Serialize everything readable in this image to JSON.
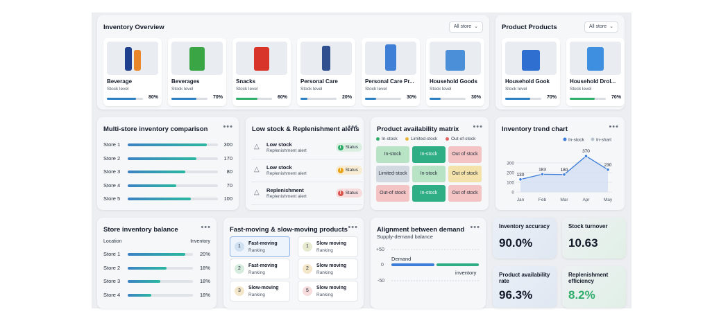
{
  "overview": {
    "title": "Inventory Overview",
    "filter": "All store",
    "items": [
      {
        "name": "Beverage",
        "sub": "Stock level",
        "pct": "80%",
        "level": 80,
        "bar_color": "#2b7fc0"
      },
      {
        "name": "Beverages",
        "sub": "Stock level",
        "pct": "70%",
        "level": 70,
        "bar_color": "#2b7fc0"
      },
      {
        "name": "Snacks",
        "sub": "Stock level",
        "pct": "60%",
        "level": 60,
        "bar_color": "#2fae6b"
      },
      {
        "name": "Personal Care",
        "sub": "Stock level",
        "pct": "20%",
        "level": 20,
        "bar_color": "#2b7fc0"
      },
      {
        "name": "Personal Care Pr...",
        "sub": "Stock level",
        "pct": "30%",
        "level": 30,
        "bar_color": "#2b7fc0"
      },
      {
        "name": "Household Goods",
        "sub": "Stock level",
        "pct": "30%",
        "level": 30,
        "bar_color": "#2b7fc0"
      }
    ]
  },
  "products": {
    "title": "Product Products",
    "filter": "All store",
    "items": [
      {
        "name": "Household Gook",
        "sub": "Stock level",
        "pct": "70%",
        "level": 70,
        "bar_color": "#2b7fc0"
      },
      {
        "name": "Household Drol...",
        "sub": "Stock level",
        "pct": "70%",
        "level": 70,
        "bar_color": "#2fae6b"
      }
    ]
  },
  "multistore": {
    "title": "Multi-store inventory comparison",
    "rows": [
      {
        "label": "Store 1",
        "value": "300",
        "level": 88
      },
      {
        "label": "Store 2",
        "value": "170",
        "level": 76
      },
      {
        "label": "Store 3",
        "value": "80",
        "level": 64
      },
      {
        "label": "Store 4",
        "value": "70",
        "level": 54
      },
      {
        "label": "Store 5",
        "value": "100",
        "level": 70
      }
    ]
  },
  "alerts": {
    "title": "Low stock & Replenishment alerts",
    "items": [
      {
        "title": "Low stock",
        "sub": "Replenishment alert",
        "badge": "Status",
        "color": "#2fae6b",
        "bg": "#dcefe3",
        "glyph": "i"
      },
      {
        "title": "Low stock",
        "sub": "Replenishment alert",
        "badge": "Status",
        "color": "#e8a317",
        "bg": "#f8ecd2",
        "glyph": "!"
      },
      {
        "title": "Replenishment",
        "sub": "Replenishment alert",
        "badge": "Status",
        "color": "#d9534f",
        "bg": "#f6dcdc",
        "glyph": "!"
      }
    ]
  },
  "matrix": {
    "title": "Product availability matrix",
    "legend": [
      {
        "label": "In-stock",
        "color": "#2fae6b"
      },
      {
        "label": "Limited-stock",
        "color": "#e8b53a"
      },
      {
        "label": "Out-of-stock",
        "color": "#e06464"
      }
    ],
    "rows": [
      [
        {
          "t": "In-stock",
          "bg": "#b9e3c5"
        },
        {
          "t": "In-stock",
          "bg": "#2fae86"
        },
        {
          "t": "Out of stock",
          "bg": "#f4c4c4"
        }
      ],
      [
        {
          "t": "Limited-stock",
          "bg": "#d3d9e0"
        },
        {
          "t": "In-stock",
          "bg": "#b9e3c5"
        },
        {
          "t": "Out of stock",
          "bg": "#f3e2a9"
        }
      ],
      [
        {
          "t": "Out-of stock",
          "bg": "#f4c4c4"
        },
        {
          "t": "In-stock",
          "bg": "#2fae86"
        },
        {
          "t": "Out of stock",
          "bg": "#f4c4c4"
        }
      ]
    ]
  },
  "trend": {
    "title": "Inventory trend chart",
    "legend": [
      "In-stock",
      "In-shart"
    ],
    "legend_colors": [
      "#3b7dd8",
      "#b9c3d0"
    ]
  },
  "chart_data": {
    "type": "area",
    "title": "Inventory trend chart",
    "categories": [
      "Jan",
      "Feb",
      "Mar",
      "Apr",
      "May"
    ],
    "series": [
      {
        "name": "In-stock",
        "values": [
          130,
          183,
          180,
          370,
          230
        ]
      }
    ],
    "data_labels": [
      "130",
      "183",
      "180",
      "370",
      "230"
    ],
    "yticks": [
      "300",
      "200",
      "100",
      "0"
    ],
    "ylim": [
      0,
      400
    ],
    "grid": true,
    "legend": "top-right"
  },
  "balance": {
    "title": "Store inventory balance",
    "col1": "Location",
    "col2": "Inventory",
    "rows": [
      {
        "label": "Store 1",
        "value": "20%",
        "level": 88
      },
      {
        "label": "Store 2",
        "value": "18%",
        "level": 60
      },
      {
        "label": "Store 3",
        "value": "18%",
        "level": 50
      },
      {
        "label": "Store 4",
        "value": "18%",
        "level": 36
      }
    ]
  },
  "moving": {
    "title": "Fast-moving & slow-moving products",
    "left": [
      {
        "num": "1",
        "title": "Fast-moving",
        "sub": "Ranking",
        "color": "#cfe0f3",
        "active": true
      },
      {
        "num": "2",
        "title": "Fast-moving",
        "sub": "Ranking",
        "color": "#d6ecdf",
        "active": false
      },
      {
        "num": "3",
        "title": "Slow-moving",
        "sub": "Ranking",
        "color": "#f4e6c9",
        "active": false
      }
    ],
    "right": [
      {
        "num": "1",
        "title": "Slow moving",
        "sub": "Ranking",
        "color": "#e8ead0"
      },
      {
        "num": "2",
        "title": "Slow moving",
        "sub": "Ranking",
        "color": "#f4e6c9"
      },
      {
        "num": "5",
        "title": "Slow moving",
        "sub": "Ranking",
        "color": "#f6dcdc"
      }
    ]
  },
  "alignment": {
    "title": "Alignment between demand",
    "subtitle": "Supply-demand balance",
    "ticks": [
      "+50",
      "0",
      "-50"
    ],
    "demand_label": "Demand",
    "inventory_label": "inventory",
    "demand_color": "#3b7dd8",
    "inventory_color": "#2fae86"
  },
  "kpis": {
    "accuracy": {
      "label": "Inventory accuracy",
      "value": "90.0%"
    },
    "turnover": {
      "label": "Stock turnover",
      "value": "10.63"
    },
    "availability": {
      "label": "Product availability rate",
      "value": "96.3%"
    },
    "efficiency": {
      "label": "Replenishment efficiency",
      "value": "8.2%"
    }
  }
}
